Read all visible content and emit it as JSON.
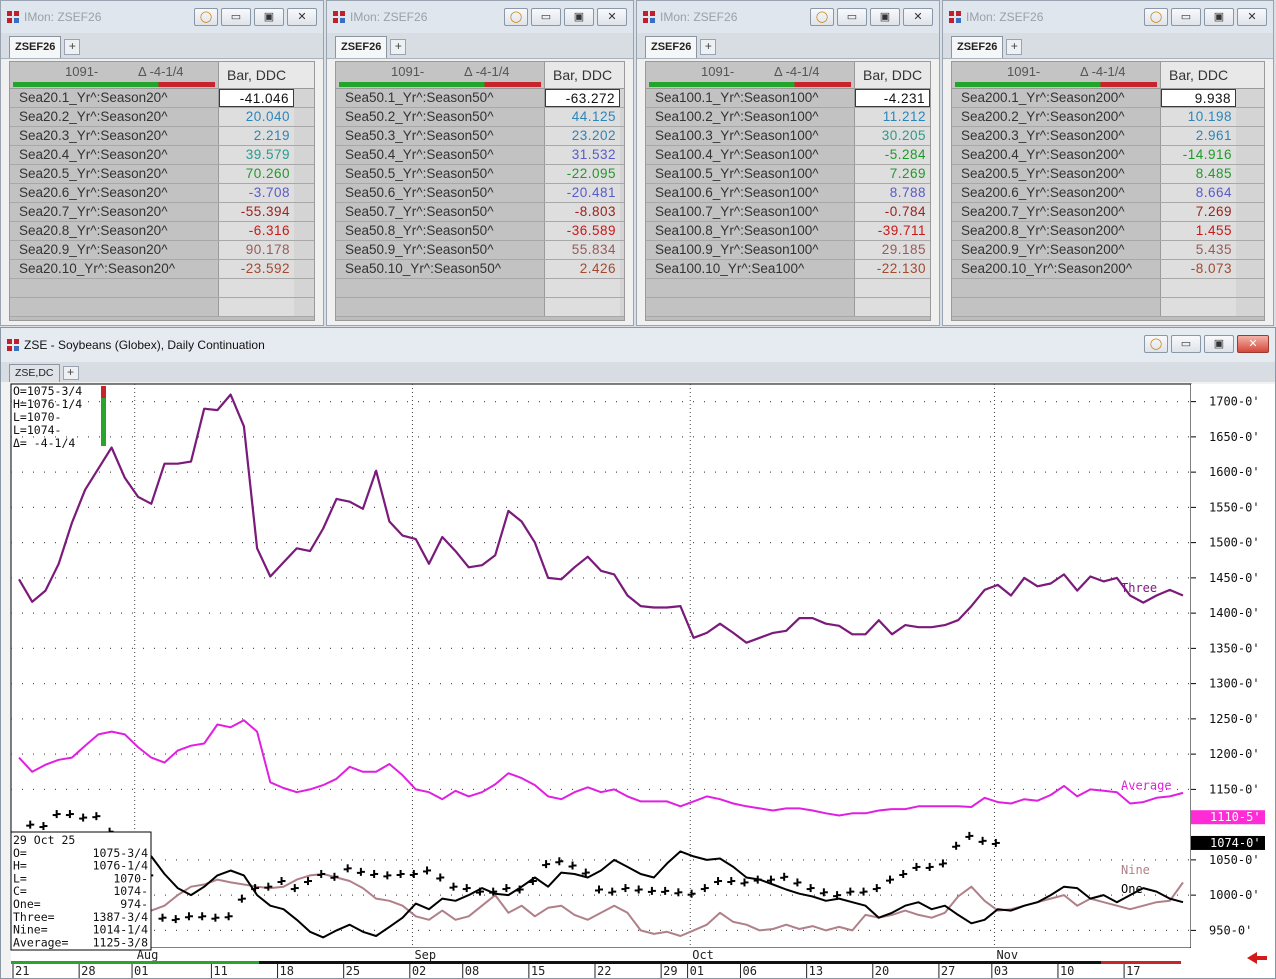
{
  "imon": {
    "title": "IMon: ZSEF26",
    "tab": "ZSEF26",
    "header": {
      "last": "1091-",
      "delta": "Δ -4-1/4",
      "column": "Bar, DDC"
    },
    "windows": [
      {
        "rows": [
          {
            "name": "Sea20.1_Yr^:Season20^",
            "value": "-41.046",
            "color": "#111111"
          },
          {
            "name": "Sea20.2_Yr^:Season20^",
            "value": "20.040",
            "color": "#2b86b8"
          },
          {
            "name": "Sea20.3_Yr^:Season20^",
            "value": "2.219",
            "color": "#2b86b8"
          },
          {
            "name": "Sea20.4_Yr^:Season20^",
            "value": "39.579",
            "color": "#2a9a8e"
          },
          {
            "name": "Sea20.5_Yr^:Season20^",
            "value": "70.260",
            "color": "#1f9a2a"
          },
          {
            "name": "Sea20.6_Yr^:Season20^",
            "value": "-3.708",
            "color": "#5a5ac8"
          },
          {
            "name": "Sea20.7_Yr^:Season20^",
            "value": "-55.394",
            "color": "#a02020"
          },
          {
            "name": "Sea20.8_Yr^:Season20^",
            "value": "-6.316",
            "color": "#c81818"
          },
          {
            "name": "Sea20.9_Yr^:Season20^",
            "value": "90.178",
            "color": "#9a5a5a"
          },
          {
            "name": "Sea20.10_Yr^:Season20^",
            "value": "-23.592",
            "color": "#a04a30"
          }
        ]
      },
      {
        "rows": [
          {
            "name": "Sea50.1_Yr^:Season50^",
            "value": "-63.272",
            "color": "#111111"
          },
          {
            "name": "Sea50.2_Yr^:Season50^",
            "value": "44.125",
            "color": "#2b86b8"
          },
          {
            "name": "Sea50.3_Yr^:Season50^",
            "value": "23.202",
            "color": "#2b86b8"
          },
          {
            "name": "Sea50.4_Yr^:Season50^",
            "value": "31.532",
            "color": "#5a5ac8"
          },
          {
            "name": "Sea50.5_Yr^:Season50^",
            "value": "-22.095",
            "color": "#1f9a2a"
          },
          {
            "name": "Sea50.6_Yr^:Season50^",
            "value": "-20.481",
            "color": "#5a5ac8"
          },
          {
            "name": "Sea50.7_Yr^:Season50^",
            "value": "-8.803",
            "color": "#a02020"
          },
          {
            "name": "Sea50.8_Yr^:Season50^",
            "value": "-36.589",
            "color": "#c81818"
          },
          {
            "name": "Sea50.9_Yr^:Season50^",
            "value": "55.834",
            "color": "#9a5a5a"
          },
          {
            "name": "Sea50.10_Yr^:Season50^",
            "value": "2.426",
            "color": "#a04a30"
          }
        ]
      },
      {
        "rows": [
          {
            "name": "Sea100.1_Yr^:Season100^",
            "value": "-4.231",
            "color": "#111111"
          },
          {
            "name": "Sea100.2_Yr^:Season100^",
            "value": "11.212",
            "color": "#2b86b8"
          },
          {
            "name": "Sea100.3_Yr^:Season100^",
            "value": "30.205",
            "color": "#2a9a8e"
          },
          {
            "name": "Sea100.4_Yr^:Season100^",
            "value": "-5.284",
            "color": "#1f9a2a"
          },
          {
            "name": "Sea100.5_Yr^:Season100^",
            "value": "7.269",
            "color": "#1f9a2a"
          },
          {
            "name": "Sea100.6_Yr^:Season100^",
            "value": "8.788",
            "color": "#5a5ac8"
          },
          {
            "name": "Sea100.7_Yr^:Season100^",
            "value": "-0.784",
            "color": "#a02020"
          },
          {
            "name": "Sea100.8_Yr^:Season100^",
            "value": "-39.711",
            "color": "#c81818"
          },
          {
            "name": "Sea100.9_Yr^:Season100^",
            "value": "29.185",
            "color": "#9a5a5a"
          },
          {
            "name": "Sea100.10_Yr^:Sea100^",
            "value": "-22.130",
            "color": "#a04a30"
          }
        ]
      },
      {
        "rows": [
          {
            "name": "Sea200.1_Yr^:Season200^",
            "value": "9.938",
            "color": "#111111"
          },
          {
            "name": "Sea200.2_Yr^:Season200^",
            "value": "10.198",
            "color": "#2b86b8"
          },
          {
            "name": "Sea200.3_Yr^:Season200^",
            "value": "2.961",
            "color": "#2b86b8"
          },
          {
            "name": "Sea200.4_Yr^:Season200^",
            "value": "-14.916",
            "color": "#1f9a2a"
          },
          {
            "name": "Sea200.5_Yr^:Season200^",
            "value": "8.485",
            "color": "#1f9a2a"
          },
          {
            "name": "Sea200.6_Yr^:Season200^",
            "value": "8.664",
            "color": "#5a5ac8"
          },
          {
            "name": "Sea200.7_Yr^:Season200^",
            "value": "7.269",
            "color": "#a02020"
          },
          {
            "name": "Sea200.8_Yr^:Season200^",
            "value": "1.455",
            "color": "#c81818"
          },
          {
            "name": "Sea200.9_Yr^:Season200^",
            "value": "5.435",
            "color": "#9a5a5a"
          },
          {
            "name": "Sea200.10_Yr^:Season200^",
            "value": "-8.073",
            "color": "#a04a30"
          }
        ]
      }
    ]
  },
  "chart_window": {
    "title": "ZSE - Soybeans (Globex), Daily Continuation",
    "tab": "ZSE,DC",
    "top_readout": [
      "O=1075-3/4",
      "H=1076-1/4",
      "L=1070-",
      "L=1074-",
      "Δ=   -4-1/4"
    ],
    "cursor_readout": [
      {
        "label": "29 Oct 25",
        "value": ""
      },
      {
        "label": "O=",
        "value": "1075-3/4"
      },
      {
        "label": "H=",
        "value": "1076-1/4"
      },
      {
        "label": "L=",
        "value": "1070-"
      },
      {
        "label": "C=",
        "value": "1074-"
      },
      {
        "label": "One=",
        "value": "974-"
      },
      {
        "label": "Three=",
        "value": "1387-3/4"
      },
      {
        "label": "Nine=",
        "value": "1014-1/4"
      },
      {
        "label": "Average=",
        "value": "1125-3/8"
      }
    ],
    "price_tags": [
      {
        "text": "1110-5",
        "value": 1110.5,
        "color": "#ff2bd6"
      },
      {
        "text": "1074-0",
        "value": 1074,
        "color": "#000000"
      }
    ]
  },
  "chart_data": {
    "type": "line",
    "ylim": [
      925,
      1725
    ],
    "y_ticks": [
      {
        "value": 1700,
        "label": "1700-0"
      },
      {
        "value": 1650,
        "label": "1650-0"
      },
      {
        "value": 1600,
        "label": "1600-0"
      },
      {
        "value": 1550,
        "label": "1550-0"
      },
      {
        "value": 1500,
        "label": "1500-0"
      },
      {
        "value": 1450,
        "label": "1450-0"
      },
      {
        "value": 1400,
        "label": "1400-0"
      },
      {
        "value": 1350,
        "label": "1350-0"
      },
      {
        "value": 1300,
        "label": "1300-0"
      },
      {
        "value": 1250,
        "label": "1250-0"
      },
      {
        "value": 1200,
        "label": "1200-0"
      },
      {
        "value": 1150,
        "label": "1150-0"
      },
      {
        "value": 1050,
        "label": "1050-0"
      },
      {
        "value": 1000,
        "label": "1000-0"
      },
      {
        "value": 950,
        "label": "950-0"
      }
    ],
    "x_day_ticks": [
      {
        "i": 0,
        "label": "21"
      },
      {
        "i": 5,
        "label": "28"
      },
      {
        "i": 9,
        "label": "01"
      },
      {
        "i": 15,
        "label": "11"
      },
      {
        "i": 20,
        "label": "18"
      },
      {
        "i": 25,
        "label": "25"
      },
      {
        "i": 30,
        "label": "02"
      },
      {
        "i": 34,
        "label": "08"
      },
      {
        "i": 39,
        "label": "15"
      },
      {
        "i": 44,
        "label": "22"
      },
      {
        "i": 49,
        "label": "29"
      },
      {
        "i": 51,
        "label": "01"
      },
      {
        "i": 55,
        "label": "06"
      },
      {
        "i": 60,
        "label": "13"
      },
      {
        "i": 65,
        "label": "20"
      },
      {
        "i": 70,
        "label": "27"
      },
      {
        "i": 74,
        "label": "03"
      },
      {
        "i": 79,
        "label": "10"
      },
      {
        "i": 84,
        "label": "17"
      }
    ],
    "x_month_ticks": [
      {
        "i": 9.2,
        "label": "Aug"
      },
      {
        "i": 30.2,
        "label": "Sep"
      },
      {
        "i": 51.2,
        "label": "Oct"
      },
      {
        "i": 74.2,
        "label": "Nov"
      }
    ],
    "series": [
      {
        "name": "Three",
        "color": "#7a1a7a",
        "values": [
          1448,
          1416,
          1432,
          1470,
          1528,
          1575,
          1605,
          1635,
          1592,
          1565,
          1555,
          1612,
          1612,
          1615,
          1690,
          1688,
          1710,
          1665,
          1492,
          1452,
          1472,
          1492,
          1488,
          1520,
          1562,
          1558,
          1548,
          1602,
          1530,
          1510,
          1505,
          1470,
          1508,
          1488,
          1465,
          1468,
          1482,
          1545,
          1530,
          1500,
          1450,
          1448,
          1465,
          1480,
          1460,
          1455,
          1425,
          1410,
          1408,
          1408,
          1410,
          1365,
          1372,
          1385,
          1372,
          1358,
          1365,
          1372,
          1375,
          1393,
          1393,
          1385,
          1382,
          1370,
          1370,
          1390,
          1370,
          1383,
          1380,
          1380,
          1383,
          1390,
          1410,
          1433,
          1440,
          1425,
          1450,
          1438,
          1442,
          1455,
          1432,
          1452,
          1445,
          1450,
          1425,
          1415,
          1425,
          1433,
          1425
        ]
      },
      {
        "name": "Average",
        "color": "#e020e0",
        "values": [
          1195,
          1175,
          1185,
          1192,
          1195,
          1212,
          1228,
          1232,
          1228,
          1210,
          1195,
          1188,
          1205,
          1212,
          1215,
          1242,
          1238,
          1248,
          1232,
          1160,
          1152,
          1146,
          1150,
          1156,
          1165,
          1182,
          1175,
          1175,
          1186,
          1170,
          1150,
          1146,
          1136,
          1148,
          1140,
          1146,
          1157,
          1173,
          1166,
          1156,
          1140,
          1136,
          1146,
          1153,
          1146,
          1150,
          1140,
          1133,
          1133,
          1133,
          1126,
          1133,
          1140,
          1136,
          1130,
          1126,
          1123,
          1120,
          1123,
          1123,
          1120,
          1116,
          1113,
          1116,
          1116,
          1120,
          1122,
          1122,
          1126,
          1126,
          1126,
          1126,
          1125,
          1138,
          1132,
          1130,
          1136,
          1134,
          1142,
          1155,
          1140,
          1150,
          1148,
          1146,
          1130,
          1132,
          1138,
          1140,
          1145
        ]
      },
      {
        "name": "Nine",
        "color": "#b08088",
        "values": [
          1015,
          1012,
          1005,
          1015,
          1025,
          1010,
          1005,
          995,
          990,
          982,
          978,
          985,
          1000,
          1012,
          1015,
          1022,
          1018,
          1015,
          1012,
          1010,
          1012,
          1022,
          1028,
          1030,
          1025,
          1020,
          1010,
          995,
          992,
          985,
          970,
          965,
          978,
          965,
          970,
          985,
          1000,
          975,
          985,
          970,
          982,
          985,
          972,
          965,
          975,
          985,
          975,
          950,
          945,
          948,
          942,
          950,
          958,
          975,
          962,
          958,
          950,
          952,
          958,
          952,
          956,
          950,
          955,
          950,
          972,
          968,
          972,
          978,
          972,
          968,
          975,
          998,
          1012,
          992,
          978,
          980,
          985,
          990,
          995,
          1000,
          985,
          995,
          990,
          985,
          980,
          985,
          990,
          992,
          1018
        ]
      },
      {
        "name": "One",
        "color": "#000000",
        "values": [
          1045,
          1030,
          1020,
          1012,
          1005,
          1020,
          1040,
          1035,
          1035,
          1045,
          1055,
          1030,
          1010,
          1000,
          1012,
          1028,
          1035,
          1028,
          1000,
          985,
          980,
          965,
          948,
          940,
          950,
          958,
          948,
          942,
          955,
          968,
          988,
          980,
          995,
          992,
          1000,
          1010,
          1002,
          1000,
          1012,
          1025,
          1012,
          1032,
          1030,
          1025,
          1035,
          1050,
          1040,
          1030,
          1025,
          1045,
          1062,
          1055,
          1050,
          1052,
          1040,
          1025,
          1022,
          1015,
          1008,
          1002,
          998,
          992,
          995,
          990,
          985,
          968,
          975,
          985,
          990,
          980,
          985,
          972,
          960,
          965,
          980,
          978,
          985,
          990,
          1000,
          1012,
          1010,
          995,
          1000,
          990,
          1000,
          1010,
          1005,
          995,
          990
        ]
      },
      {
        "name": "bars",
        "color": "#000000",
        "values": [
          1100,
          1098,
          1115,
          1115,
          1110,
          1112,
          1090,
          1065,
          1040,
          1028,
          968,
          966,
          970,
          970,
          968,
          970,
          995,
          1010,
          1012,
          1020,
          1010,
          1020,
          1030,
          1026,
          1038,
          1033,
          1030,
          1028,
          1030,
          1030,
          1035,
          1025,
          1012,
          1010,
          1005,
          1005,
          1010,
          1008,
          1020,
          1044,
          1048,
          1042,
          1032,
          1008,
          1005,
          1010,
          1008,
          1006,
          1006,
          1004,
          1002,
          1010,
          1020,
          1020,
          1018,
          1022,
          1022,
          1026,
          1018,
          1010,
          1004,
          1000,
          1005,
          1005,
          1010,
          1022,
          1030,
          1040,
          1040,
          1045,
          1070,
          1084,
          1077,
          1074
        ]
      }
    ]
  }
}
